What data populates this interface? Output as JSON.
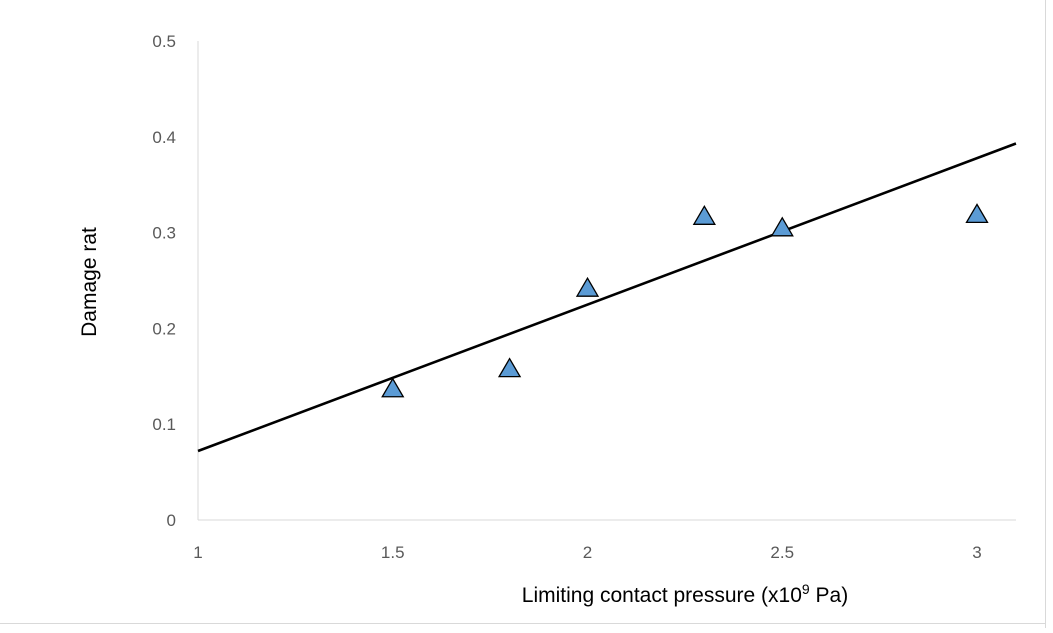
{
  "chart_data": {
    "type": "scatter",
    "title": "",
    "xlabel": {
      "prefix": "Limiting contact pressure (x10",
      "superscript": "9",
      "suffix": " Pa)"
    },
    "ylabel": "Damage rat",
    "xlim": [
      1,
      3.1
    ],
    "ylim": [
      0,
      0.5
    ],
    "x_ticks": [
      1,
      1.5,
      2,
      2.5,
      3
    ],
    "y_ticks": [
      0,
      0.1,
      0.2,
      0.3,
      0.4,
      0.5
    ],
    "grid": false,
    "legend": "none",
    "series": [
      {
        "marker": "triangle",
        "color": "#5b9bd5",
        "edge_color": "#000000",
        "points": [
          {
            "x": 1.5,
            "y": 0.137
          },
          {
            "x": 1.8,
            "y": 0.158
          },
          {
            "x": 2.0,
            "y": 0.242
          },
          {
            "x": 2.3,
            "y": 0.317
          },
          {
            "x": 2.5,
            "y": 0.305
          },
          {
            "x": 3.0,
            "y": 0.319
          }
        ]
      }
    ],
    "trendline": {
      "type": "linear",
      "color": "#000000",
      "points": [
        {
          "x": 1.0,
          "y": 0.072
        },
        {
          "x": 3.1,
          "y": 0.393
        }
      ]
    }
  }
}
